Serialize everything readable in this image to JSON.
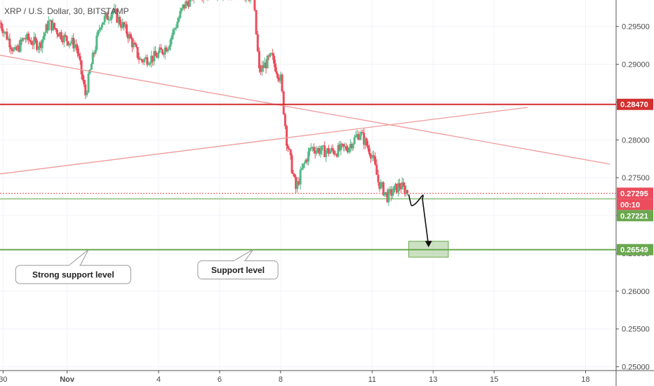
{
  "symbol_header": "XRP / U.S. Dollar, 30, BITSTAMP",
  "colors": {
    "up": "#53b987",
    "down": "#eb4d5c",
    "resistance": "#d32f2f",
    "support": "#6aa84f",
    "trendline": "#ef9a9a",
    "grid": "#f0f3fa",
    "axis_text": "#4a4a4a"
  },
  "chart_data": {
    "type": "candlestick",
    "title": "",
    "ylim": [
      0.2495,
      0.2985
    ],
    "xlim": [
      0.0,
      20.2
    ],
    "y_ticks": [
      "0.25000",
      "0.25500",
      "0.26000",
      "0.26500",
      "0.27000",
      "0.27500",
      "0.28000",
      "0.28500",
      "0.29000",
      "0.29500"
    ],
    "x_ticks": [
      {
        "x": 0.1,
        "label": "30"
      },
      {
        "x": 2.2,
        "label": "Nov"
      },
      {
        "x": 5.2,
        "label": "4"
      },
      {
        "x": 7.2,
        "label": "6"
      },
      {
        "x": 9.2,
        "label": "8"
      },
      {
        "x": 12.2,
        "label": "11"
      },
      {
        "x": 14.2,
        "label": "13"
      },
      {
        "x": 16.2,
        "label": "15"
      },
      {
        "x": 19.2,
        "label": "18"
      }
    ],
    "price_path": [
      [
        0.0,
        0.2955
      ],
      [
        0.5,
        0.2915
      ],
      [
        0.8,
        0.2935
      ],
      [
        1.3,
        0.2925
      ],
      [
        1.6,
        0.2955
      ],
      [
        2.1,
        0.2935
      ],
      [
        2.5,
        0.2925
      ],
      [
        2.8,
        0.286
      ],
      [
        3.0,
        0.29
      ],
      [
        3.3,
        0.2955
      ],
      [
        3.7,
        0.297
      ],
      [
        4.2,
        0.294
      ],
      [
        4.6,
        0.2905
      ],
      [
        5.1,
        0.291
      ],
      [
        5.5,
        0.2925
      ],
      [
        6.0,
        0.2975
      ],
      [
        6.4,
        0.2995
      ],
      [
        7.5,
        0.2995
      ],
      [
        8.3,
        0.299
      ],
      [
        8.5,
        0.289
      ],
      [
        8.9,
        0.291
      ],
      [
        9.2,
        0.288
      ],
      [
        9.4,
        0.28
      ],
      [
        9.7,
        0.2735
      ],
      [
        9.9,
        0.276
      ],
      [
        10.2,
        0.279
      ],
      [
        10.6,
        0.2785
      ],
      [
        11.0,
        0.2785
      ],
      [
        11.4,
        0.279
      ],
      [
        11.8,
        0.281
      ],
      [
        12.2,
        0.278
      ],
      [
        12.4,
        0.2745
      ],
      [
        12.7,
        0.2725
      ],
      [
        13.1,
        0.274
      ],
      [
        13.4,
        0.273
      ]
    ],
    "resistance": {
      "label": "0.28470",
      "value": 0.2847
    },
    "current_price": {
      "label": "0.27295",
      "value": 0.27295,
      "countdown": "00:10"
    },
    "support": {
      "label": "0.27221",
      "value": 0.27221
    },
    "strong_support": {
      "label": "0.26549",
      "value": 0.26549
    },
    "trendlines": [
      {
        "from": [
          0.0,
          0.2912
        ],
        "to": [
          20.0,
          0.2768
        ]
      },
      {
        "from": [
          0.0,
          0.2755
        ],
        "to": [
          17.3,
          0.2843
        ]
      }
    ],
    "projection": [
      [
        13.4,
        0.2728
      ],
      [
        13.6,
        0.2715
      ],
      [
        13.85,
        0.2722
      ],
      [
        14.05,
        0.266
      ]
    ],
    "target_zone": {
      "x": [
        13.4,
        14.7
      ],
      "y": [
        0.2645,
        0.2666
      ]
    },
    "annotations": [
      {
        "text": "Strong support level",
        "anchor": [
          2.9,
          0.2655
        ],
        "box_center": [
          2.4,
          0.2622
        ]
      },
      {
        "text": "Support level",
        "anchor": [
          8.3,
          0.2655
        ],
        "box_center": [
          7.8,
          0.2628
        ]
      }
    ]
  }
}
